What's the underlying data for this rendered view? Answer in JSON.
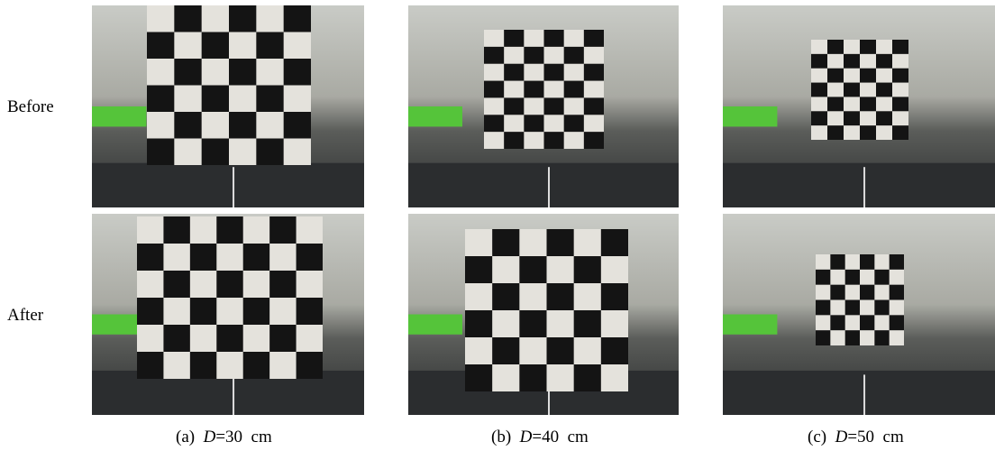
{
  "rows": [
    "Before",
    "After"
  ],
  "captions": [
    {
      "label": "(a)",
      "variable": "D",
      "value": "=30  cm"
    },
    {
      "label": "(b)",
      "variable": "D",
      "value": "=40  cm"
    },
    {
      "label": "(c)",
      "variable": "D",
      "value": "=50  cm"
    }
  ]
}
